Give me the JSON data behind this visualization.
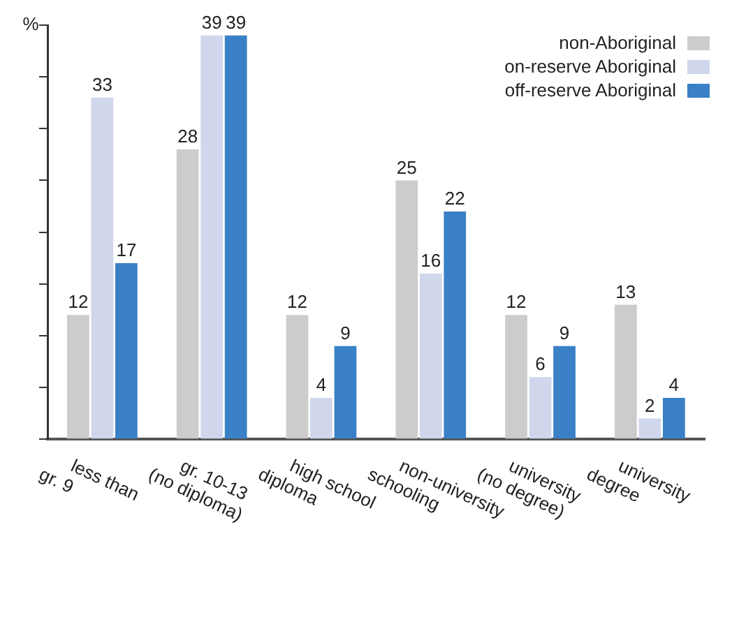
{
  "chart_data": {
    "type": "bar",
    "ylabel": "%",
    "categories": [
      "less than\ngr. 9",
      "gr. 10-13\n(no diploma)",
      "high school\ndiploma",
      "non-university\nschooling",
      "university\n(no degree)",
      "university\ndegree"
    ],
    "series": [
      {
        "name": "non-Aboriginal",
        "color": "#cccccc",
        "values": [
          12,
          28,
          12,
          25,
          12,
          13
        ]
      },
      {
        "name": "on-reserve Aboriginal",
        "color": "#d0d7ec",
        "values": [
          33,
          39,
          4,
          16,
          6,
          2
        ]
      },
      {
        "name": "off-reserve Aboriginal",
        "color": "#3a80c6",
        "values": [
          17,
          39,
          9,
          22,
          9,
          4
        ]
      }
    ],
    "ylim": [
      0,
      40
    ],
    "yticks": [
      {
        "value": 0,
        "label": null
      },
      {
        "value": 5,
        "label": null
      },
      {
        "value": 10,
        "label": null
      },
      {
        "value": 15,
        "label": null
      },
      {
        "value": 20,
        "label": null
      },
      {
        "value": 25,
        "label": null
      },
      {
        "value": 30,
        "label": null
      },
      {
        "value": 35,
        "label": null
      },
      {
        "value": 40,
        "label": null
      }
    ],
    "data_labels": true,
    "grid": false,
    "legend": "top right"
  }
}
